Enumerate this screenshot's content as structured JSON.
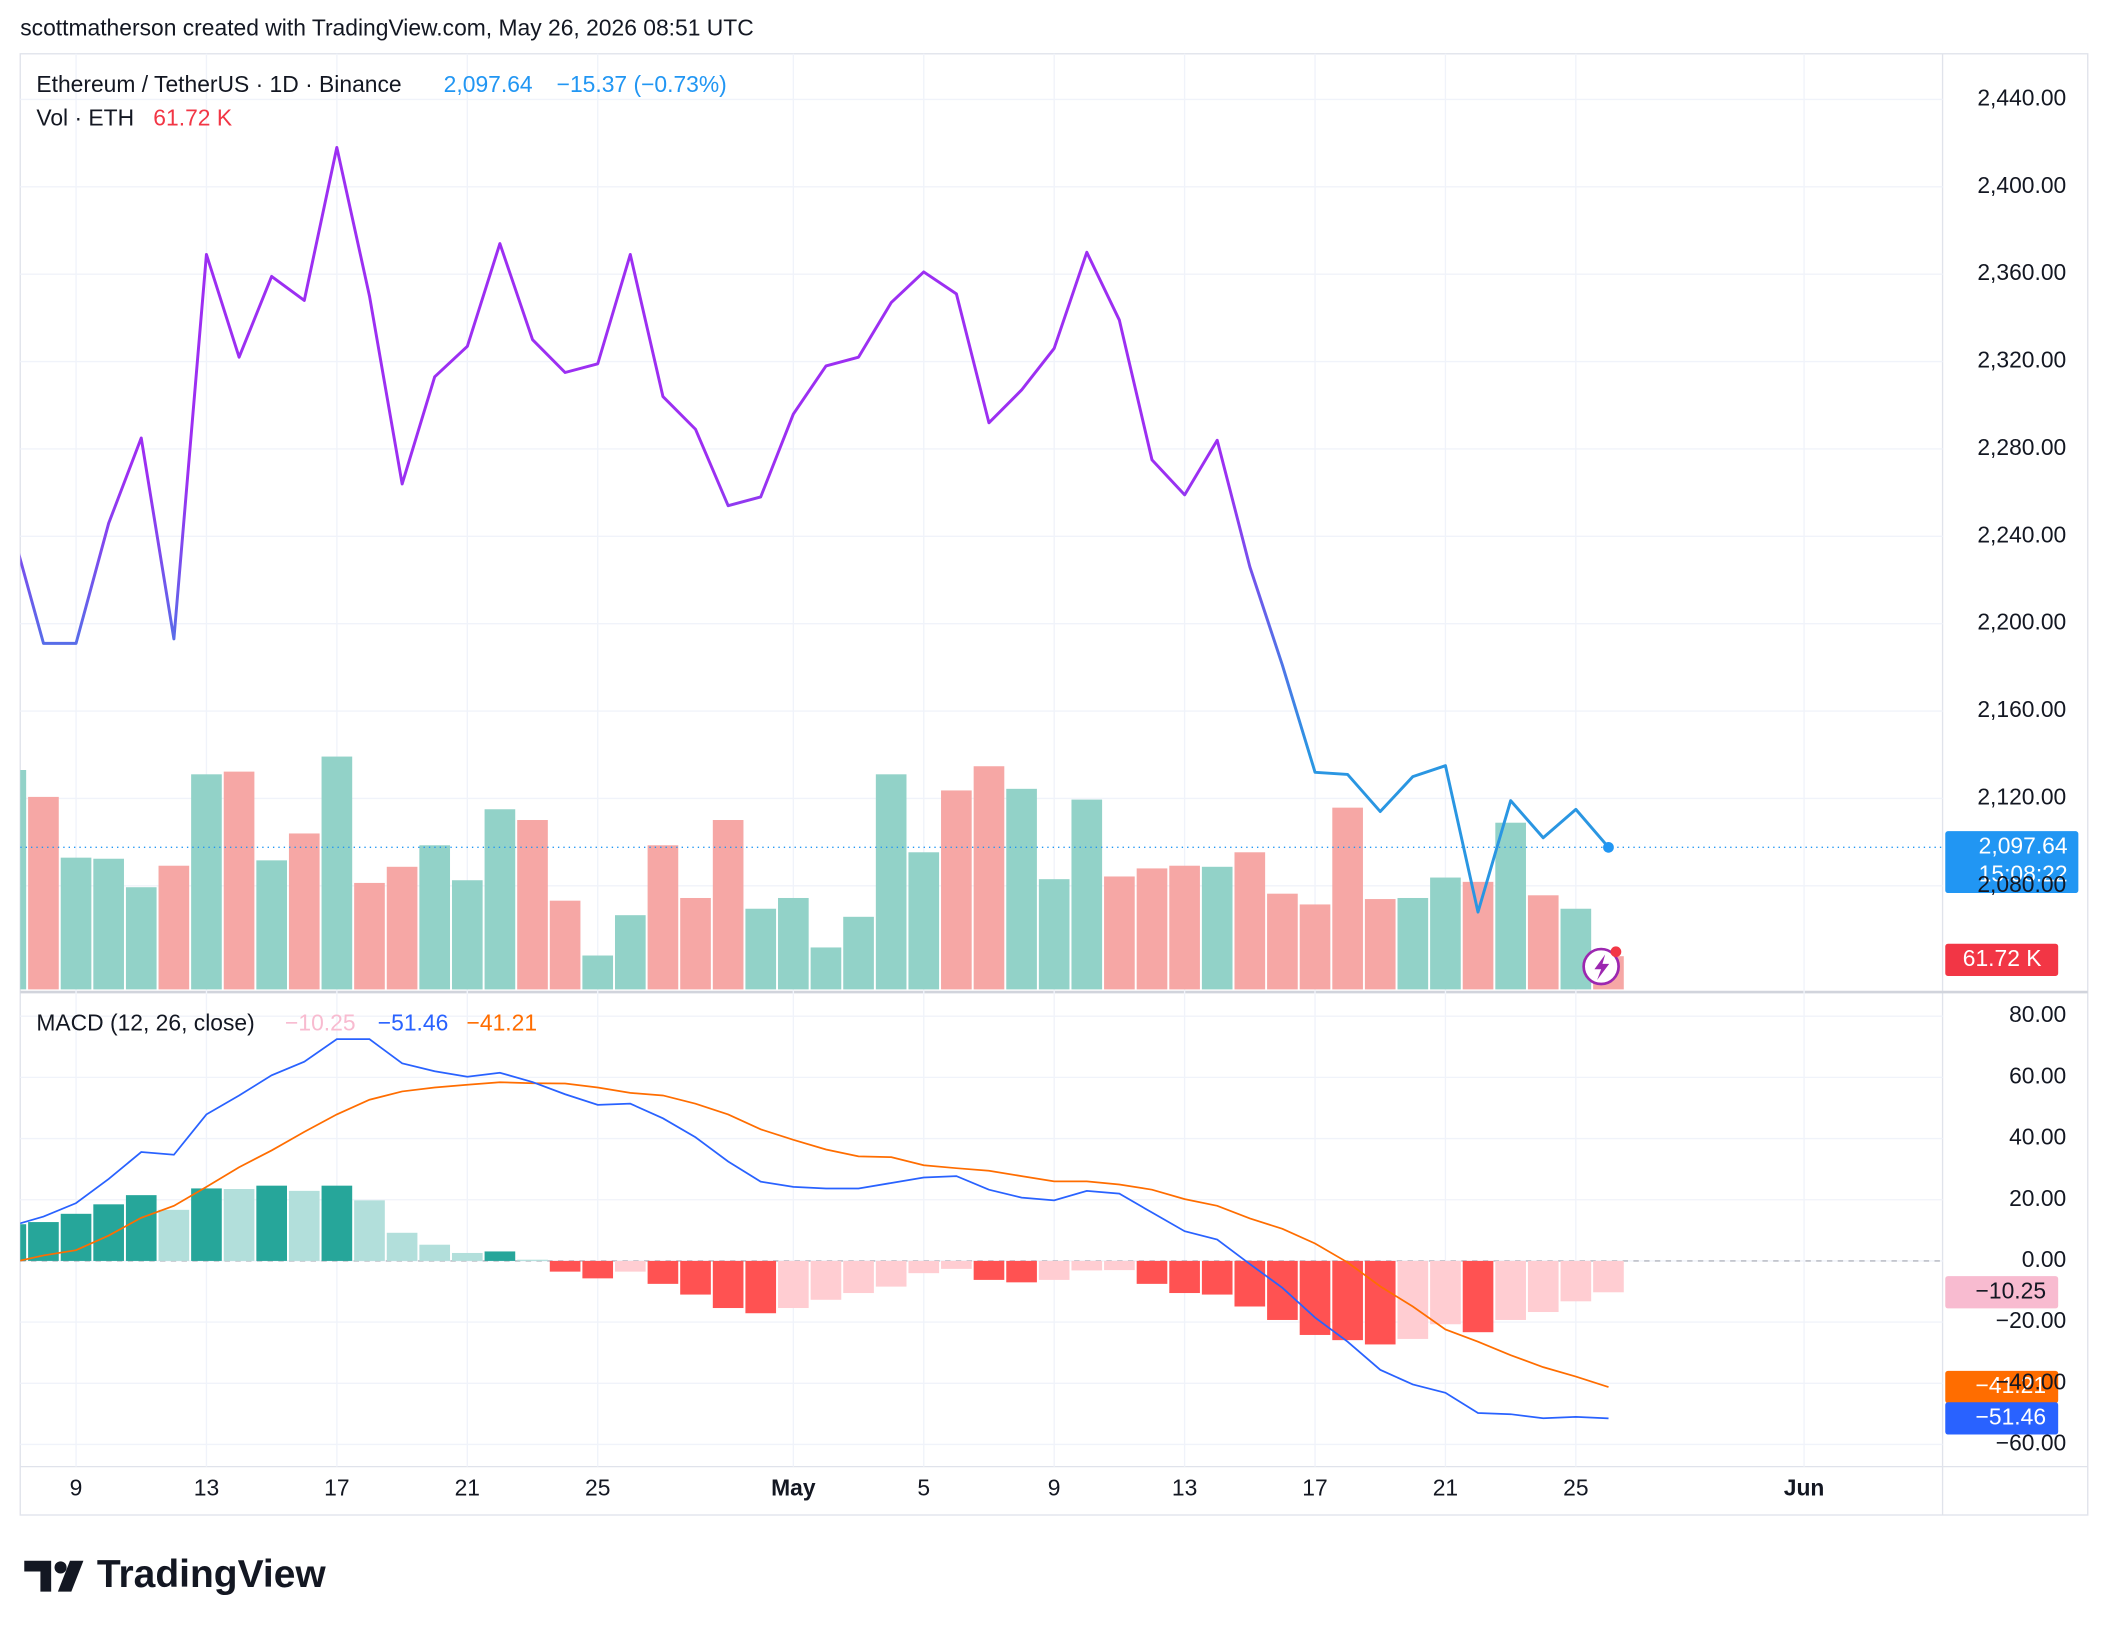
{
  "header": {
    "attribution": "scottmatherson created with TradingView.com, May 26, 2026 08:51 UTC"
  },
  "footer": {
    "logo_text": "TradingView"
  },
  "chart_data": [
    {
      "type": "line",
      "title": "Ethereum / TetherUS · 1D · Binance",
      "last_label": "2,097.64",
      "change_label": "−15.37 (−0.73%)",
      "countdown": "15:08:22",
      "x": [
        "2026-04-07",
        "2026-04-08",
        "2026-04-09",
        "2026-04-10",
        "2026-04-11",
        "2026-04-12",
        "2026-04-13",
        "2026-04-14",
        "2026-04-15",
        "2026-04-16",
        "2026-04-17",
        "2026-04-18",
        "2026-04-19",
        "2026-04-20",
        "2026-04-21",
        "2026-04-22",
        "2026-04-23",
        "2026-04-24",
        "2026-04-25",
        "2026-04-26",
        "2026-04-27",
        "2026-04-28",
        "2026-04-29",
        "2026-04-30",
        "2026-05-01",
        "2026-05-02",
        "2026-05-03",
        "2026-05-04",
        "2026-05-05",
        "2026-05-06",
        "2026-05-07",
        "2026-05-08",
        "2026-05-09",
        "2026-05-10",
        "2026-05-11",
        "2026-05-12",
        "2026-05-13",
        "2026-05-14",
        "2026-05-15",
        "2026-05-16",
        "2026-05-17",
        "2026-05-18",
        "2026-05-19",
        "2026-05-20",
        "2026-05-21",
        "2026-05-22",
        "2026-05-23",
        "2026-05-24",
        "2026-05-25",
        "2026-05-26"
      ],
      "series": [
        {
          "colors": [
            "#9c2ff2",
            "#2a96e2"
          ],
          "values": [
            2245,
            2191,
            2191,
            2246,
            2285,
            2193,
            2369,
            2322,
            2359,
            2348,
            2418,
            2350,
            2264,
            2313,
            2327,
            2374,
            2330,
            2315,
            2319,
            2369,
            2304,
            2289,
            2254,
            2258,
            2296,
            2318,
            2322,
            2347,
            2361,
            2351,
            2292,
            2307,
            2326,
            2370,
            2339,
            2275,
            2259,
            2284,
            2226,
            2181,
            2132,
            2131,
            2114,
            2130,
            2135,
            2068,
            2119,
            2102,
            2115,
            2097.64
          ]
        }
      ],
      "last_color": "#2196f3",
      "volume": {
        "title": "Vol · ETH",
        "value_label": "61.72 K",
        "up_color": "#92d2c8",
        "down_color": "#f6a7a5",
        "label_color": "#f23645",
        "ylim": [
          0,
          1740
        ],
        "values": [
          408,
          358,
          245,
          243,
          190,
          230,
          400,
          405,
          240,
          290,
          433,
          198,
          228,
          268,
          203,
          335,
          315,
          165,
          63,
          138,
          268,
          170,
          315,
          150,
          170,
          78,
          135,
          400,
          255,
          370,
          415,
          373,
          205,
          353,
          210,
          225,
          230,
          228,
          255,
          178,
          158,
          338,
          168,
          170,
          208,
          200,
          310,
          175,
          150,
          61.72
        ]
      },
      "xlim": [
        "2026-04-07",
        "2026-06-05"
      ],
      "xticks": [
        {
          "value": "2026-04-09",
          "label": "9"
        },
        {
          "value": "2026-04-13",
          "label": "13"
        },
        {
          "value": "2026-04-17",
          "label": "17"
        },
        {
          "value": "2026-04-21",
          "label": "21"
        },
        {
          "value": "2026-04-25",
          "label": "25"
        },
        {
          "value": "2026-05-01",
          "label": "May"
        },
        {
          "value": "2026-05-05",
          "label": "5"
        },
        {
          "value": "2026-05-09",
          "label": "9"
        },
        {
          "value": "2026-05-13",
          "label": "13"
        },
        {
          "value": "2026-05-17",
          "label": "17"
        },
        {
          "value": "2026-05-21",
          "label": "21"
        },
        {
          "value": "2026-05-25",
          "label": "25"
        },
        {
          "value": "2026-06-01",
          "label": "Jun"
        }
      ],
      "ylim": [
        2032.6,
        2460.9
      ],
      "yticks": [
        {
          "value": 2440,
          "label": "2,440.00"
        },
        {
          "value": 2400,
          "label": "2,400.00"
        },
        {
          "value": 2360,
          "label": "2,360.00"
        },
        {
          "value": 2320,
          "label": "2,320.00"
        },
        {
          "value": 2280,
          "label": "2,280.00"
        },
        {
          "value": 2240,
          "label": "2,240.00"
        },
        {
          "value": 2200,
          "label": "2,200.00"
        },
        {
          "value": 2160,
          "label": "2,160.00"
        },
        {
          "value": 2120,
          "label": "2,120.00"
        },
        {
          "value": 2080,
          "label": "2,080.00"
        }
      ],
      "grid": true
    },
    {
      "type": "macd",
      "title": "MACD (12, 26, close)",
      "histogram": {
        "colors": [
          "#26a69a",
          "#b2dfdb",
          "#ffcdd2",
          "#ff5252"
        ],
        "label_color": "#f8bbd0",
        "last_label": "−10.25",
        "values": [
          12,
          12.7,
          15.4,
          18.5,
          21.5,
          16.7,
          23.7,
          23.5,
          24.6,
          22.9,
          24.6,
          19.8,
          9.2,
          5.3,
          2.6,
          3.1,
          0.4,
          -3.5,
          -5.7,
          -3.5,
          -7.5,
          -11,
          -15.4,
          -17.1,
          -15.4,
          -12.7,
          -10.5,
          -8.4,
          -4,
          -2.6,
          -6.2,
          -7,
          -6.2,
          -3.1,
          -3.0,
          -7.5,
          -10.5,
          -11,
          -14.9,
          -19.3,
          -24.2,
          -25.9,
          -27.3,
          -25.5,
          -20.7,
          -23.3,
          -19.3,
          -16.7,
          -13.2,
          -10.25
        ]
      },
      "macd": {
        "color": "#2962ff",
        "last_label": "−51.46",
        "values": [
          11.4,
          14.5,
          18.9,
          26.8,
          35.6,
          34.7,
          47.9,
          54.1,
          60.7,
          65.1,
          72.5,
          72.5,
          64.6,
          62,
          60.2,
          61.5,
          58.5,
          54.5,
          51,
          51.4,
          46.6,
          40.4,
          32.5,
          25.9,
          24.2,
          23.7,
          23.7,
          25.5,
          27.3,
          27.7,
          23.3,
          20.7,
          19.8,
          22.9,
          22,
          15.8,
          9.7,
          7,
          -1,
          -8.8,
          -18.5,
          -26.4,
          -35.6,
          -40.4,
          -43.1,
          -49.7,
          -50.1,
          -51.4,
          -51,
          -51.46
        ]
      },
      "signal": {
        "color": "#ff6d00",
        "last_label": "−41.21",
        "values": [
          -0.6,
          1.8,
          3.5,
          8.3,
          14.1,
          18,
          24.2,
          30.6,
          36.1,
          42.2,
          47.9,
          52.7,
          55.4,
          56.7,
          57.6,
          58.4,
          58.1,
          58,
          56.7,
          54.9,
          54.1,
          51.4,
          47.9,
          43,
          39.6,
          36.4,
          34.2,
          33.9,
          31.3,
          30.3,
          29.5,
          27.7,
          26,
          26,
          25,
          23.3,
          20.2,
          18,
          13.9,
          10.5,
          5.7,
          -0.5,
          -8.3,
          -14.9,
          -22.4,
          -26.4,
          -30.8,
          -34.7,
          -37.8,
          -41.21
        ]
      },
      "ylim": [
        -66.8,
        87
      ],
      "yticks": [
        {
          "value": 80,
          "label": "80.00"
        },
        {
          "value": 60,
          "label": "60.00"
        },
        {
          "value": 40,
          "label": "40.00"
        },
        {
          "value": 20,
          "label": "20.00"
        },
        {
          "value": 0,
          "label": "0.00"
        },
        {
          "value": -20,
          "label": "−20.00"
        },
        {
          "value": -40,
          "label": "−40.00"
        },
        {
          "value": -60,
          "label": "−60.00"
        }
      ],
      "grid": true
    }
  ]
}
